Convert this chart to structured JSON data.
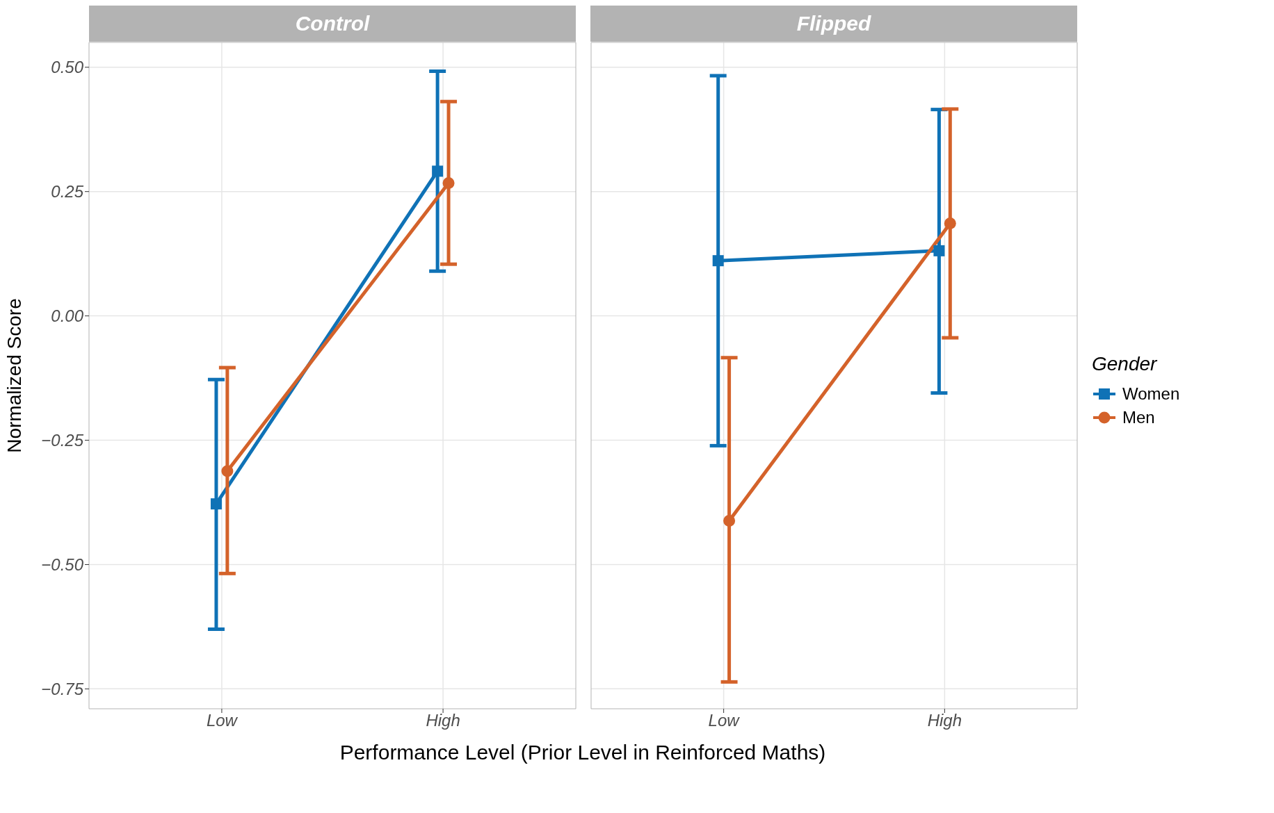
{
  "chart_data": [
    {
      "type": "line",
      "title": "Control",
      "xlabel": "Performance Level (Prior Level in Reinforced Maths)",
      "ylabel": "Normalized Score",
      "categories": [
        "Low",
        "High"
      ],
      "ylim": [
        -0.79,
        0.55
      ],
      "yticks": [
        {
          "value": 0.5,
          "label": "0.50"
        },
        {
          "value": 0.25,
          "label": "0.25"
        },
        {
          "value": 0,
          "label": "0.00"
        },
        {
          "value": -0.25,
          "label": "−0.25"
        },
        {
          "value": -0.5,
          "label": "−0.50"
        },
        {
          "value": -0.75,
          "label": "−0.75"
        }
      ],
      "grid": true,
      "legend": false,
      "series": [
        {
          "color": "#0f72b6",
          "marker": "square",
          "values": [
            -0.378,
            0.291
          ],
          "errors": [
            [
              -0.63,
              -0.128
            ],
            [
              0.09,
              0.492
            ]
          ]
        },
        {
          "color": "#d4622a",
          "marker": "circle",
          "values": [
            -0.312,
            0.267
          ],
          "errors": [
            [
              -0.518,
              -0.104
            ],
            [
              0.104,
              0.431
            ]
          ]
        }
      ]
    },
    {
      "type": "line",
      "title": "Flipped",
      "categories": [
        "Low",
        "High"
      ],
      "ylim": [
        -0.79,
        0.55
      ],
      "yticks": [
        0.5,
        0.25,
        0,
        -0.25,
        -0.5,
        -0.75
      ],
      "tick_labels": "x",
      "grid": true,
      "legend": "right",
      "legend_title": "Gender",
      "series": [
        {
          "name": "Women",
          "color": "#0f72b6",
          "marker": "square",
          "values": [
            0.111,
            0.131
          ],
          "errors": [
            [
              -0.261,
              0.483
            ],
            [
              -0.155,
              0.415
            ]
          ]
        },
        {
          "name": "Men",
          "color": "#d4622a",
          "marker": "circle",
          "values": [
            -0.412,
            0.186
          ],
          "errors": [
            [
              -0.736,
              -0.084
            ],
            [
              -0.044,
              0.416
            ]
          ]
        }
      ]
    }
  ]
}
